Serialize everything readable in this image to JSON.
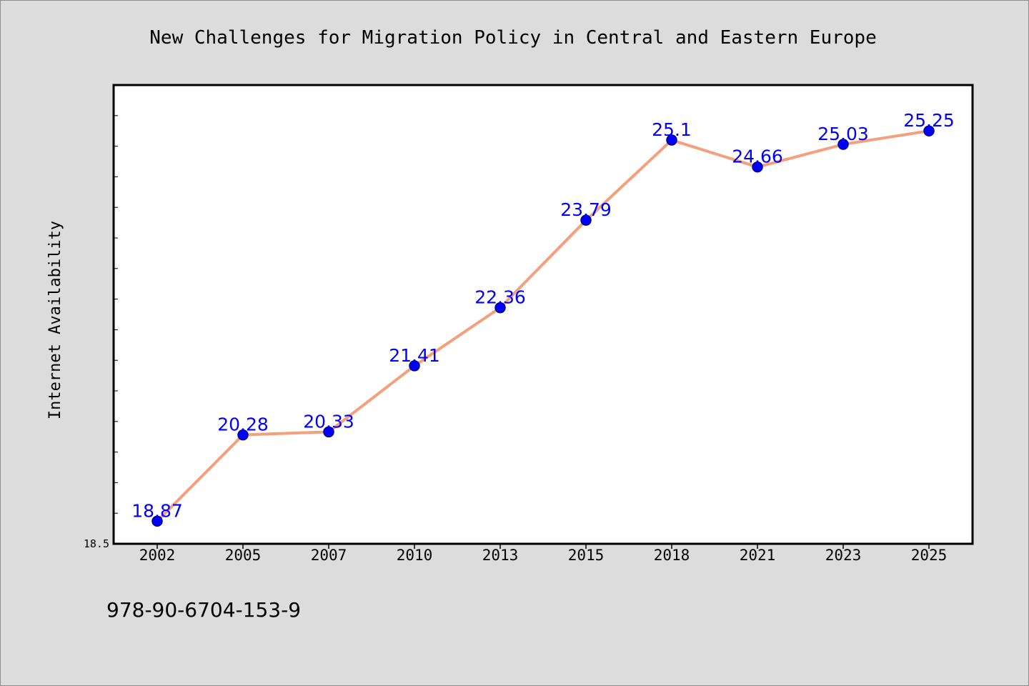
{
  "chart_data": {
    "type": "line",
    "title": "New Challenges for Migration Policy in Central and Eastern Europe",
    "xlabel": "",
    "ylabel": "Internet Availability",
    "categories": [
      "2002",
      "2005",
      "2007",
      "2010",
      "2013",
      "2015",
      "2018",
      "2021",
      "2023",
      "2025"
    ],
    "series": [
      {
        "values": [
          18.87,
          20.28,
          20.33,
          21.41,
          22.36,
          23.79,
          25.1,
          24.66,
          25.03,
          25.25
        ],
        "labels": [
          "18.87",
          "20.28",
          "20.33",
          "21.41",
          "22.36",
          "23.79",
          "25.1",
          "24.66",
          "25.03",
          "25.25"
        ]
      }
    ],
    "ylim": [
      18.5,
      26.0
    ],
    "ytick_labels": [
      "18.5"
    ],
    "grid": false,
    "legend": "none",
    "colors": {
      "line": "#f4a07d",
      "marker": "#0000ff",
      "marker_edge": "#00008b",
      "data_label": "#0000ff",
      "background": "#dcdcdc",
      "plot_area": "#ffffff"
    }
  },
  "footer": {
    "isbn": "978-90-6704-153-9"
  }
}
